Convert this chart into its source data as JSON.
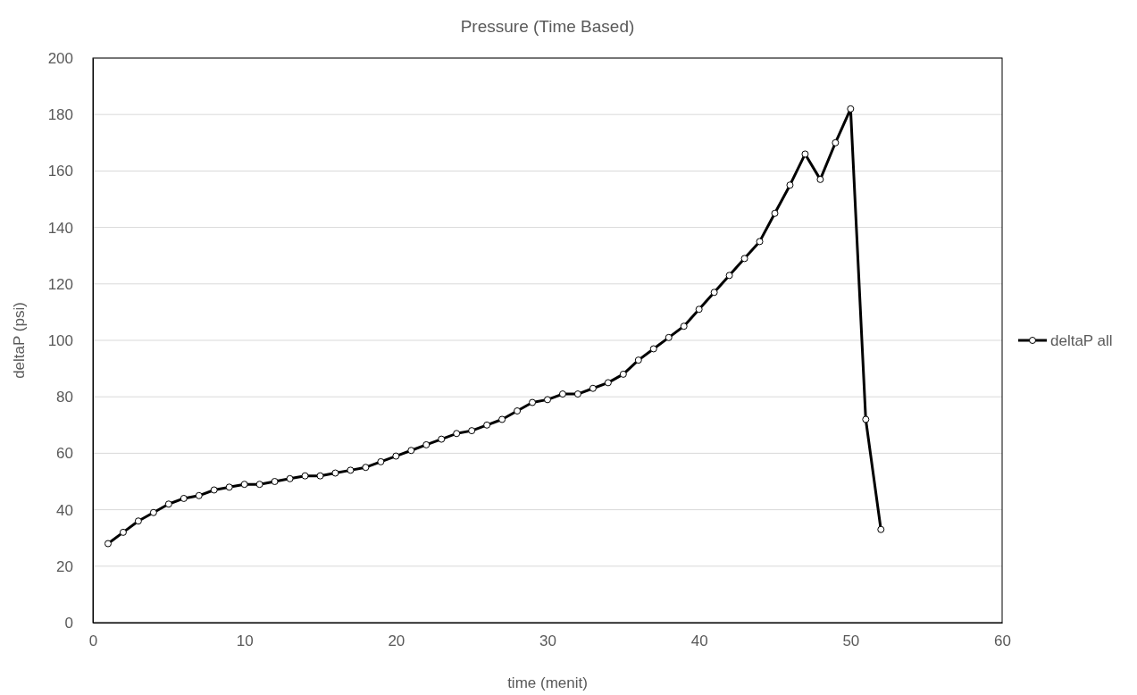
{
  "chart_data": {
    "type": "line",
    "title": "Pressure (Time Based)",
    "xlabel": "time (menit)",
    "ylabel": "deltaP (psi)",
    "x": [
      1,
      2,
      3,
      4,
      5,
      6,
      7,
      8,
      9,
      10,
      11,
      12,
      13,
      14,
      15,
      16,
      17,
      18,
      19,
      20,
      21,
      22,
      23,
      24,
      25,
      26,
      27,
      28,
      29,
      30,
      31,
      32,
      33,
      34,
      35,
      36,
      37,
      38,
      39,
      40,
      41,
      42,
      43,
      44,
      45,
      46,
      47,
      48,
      49,
      50,
      51,
      52
    ],
    "series": [
      {
        "name": "deltaP all",
        "color": "#000000",
        "values": [
          28,
          32,
          36,
          39,
          42,
          44,
          45,
          47,
          48,
          49,
          49,
          50,
          51,
          52,
          52,
          53,
          54,
          55,
          57,
          59,
          61,
          63,
          65,
          67,
          68,
          70,
          72,
          75,
          78,
          79,
          81,
          81,
          83,
          85,
          88,
          93,
          97,
          101,
          105,
          111,
          117,
          123,
          129,
          135,
          145,
          155,
          166,
          157,
          170,
          182,
          72,
          33
        ]
      }
    ],
    "xlim": [
      0,
      60
    ],
    "xticks": [
      0,
      10,
      20,
      30,
      40,
      50,
      60
    ],
    "ylim": [
      0,
      200
    ],
    "yticks": [
      0,
      20,
      40,
      60,
      80,
      100,
      120,
      140,
      160,
      180,
      200
    ],
    "grid": "y",
    "legend": "right",
    "marker": "circle",
    "line_style": "solid"
  }
}
